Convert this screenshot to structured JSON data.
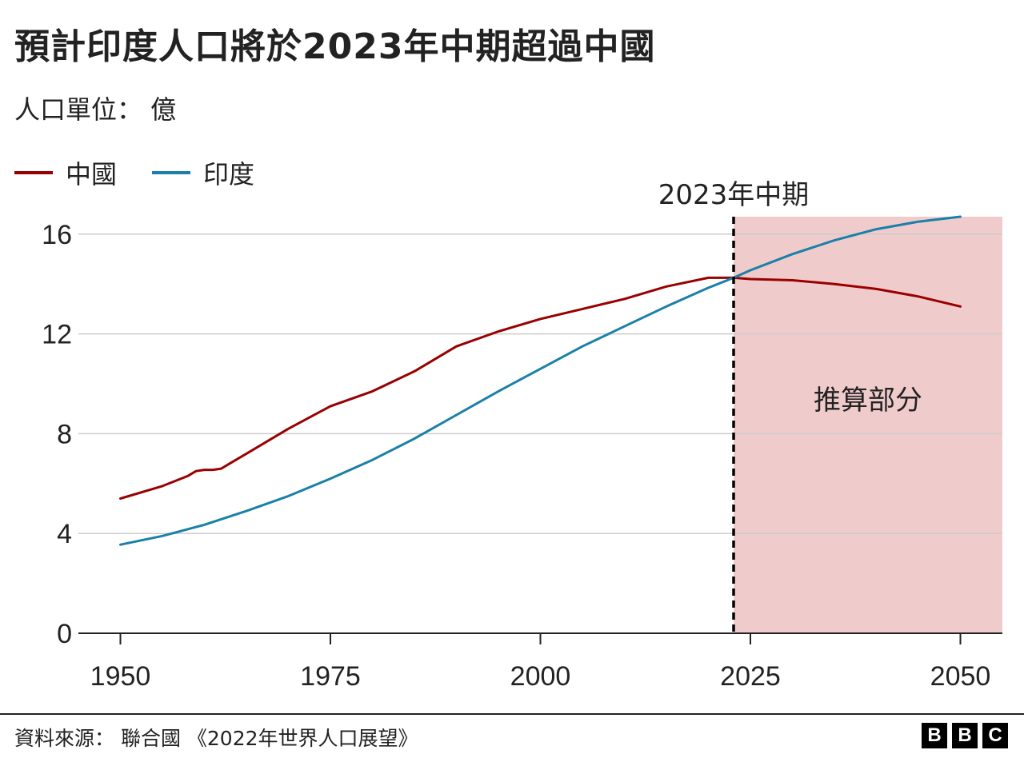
{
  "title": "預計印度人口將於2023年中期超過中國",
  "subtitle": "人口單位： 億",
  "source": "資料來源： 聯合國 《2022年世界人口展望》",
  "logo": [
    "B",
    "B",
    "C"
  ],
  "chart_data": {
    "type": "line",
    "xlim": [
      1945,
      2055
    ],
    "ylim": [
      0,
      16
    ],
    "yticks": [
      0,
      4,
      8,
      12,
      16
    ],
    "xticks": [
      1950,
      1975,
      2000,
      2025,
      2050
    ],
    "grid": "horizontal",
    "legend_position": "top-left",
    "series": [
      {
        "name": "中國",
        "color": "#990000",
        "points": [
          [
            1950,
            5.4
          ],
          [
            1955,
            5.9
          ],
          [
            1958,
            6.3
          ],
          [
            1959,
            6.5
          ],
          [
            1960,
            6.55
          ],
          [
            1961,
            6.55
          ],
          [
            1962,
            6.6
          ],
          [
            1963,
            6.8
          ],
          [
            1965,
            7.2
          ],
          [
            1970,
            8.2
          ],
          [
            1975,
            9.1
          ],
          [
            1980,
            9.7
          ],
          [
            1985,
            10.5
          ],
          [
            1990,
            11.5
          ],
          [
            1995,
            12.1
          ],
          [
            2000,
            12.6
          ],
          [
            2005,
            13.0
          ],
          [
            2010,
            13.4
          ],
          [
            2015,
            13.9
          ],
          [
            2020,
            14.25
          ],
          [
            2023,
            14.25
          ],
          [
            2025,
            14.2
          ],
          [
            2030,
            14.15
          ],
          [
            2035,
            14.0
          ],
          [
            2040,
            13.8
          ],
          [
            2045,
            13.5
          ],
          [
            2050,
            13.1
          ]
        ]
      },
      {
        "name": "印度",
        "color": "#1a80a8",
        "points": [
          [
            1950,
            3.55
          ],
          [
            1955,
            3.9
          ],
          [
            1960,
            4.35
          ],
          [
            1965,
            4.9
          ],
          [
            1970,
            5.5
          ],
          [
            1975,
            6.2
          ],
          [
            1980,
            6.95
          ],
          [
            1985,
            7.8
          ],
          [
            1990,
            8.75
          ],
          [
            1995,
            9.7
          ],
          [
            2000,
            10.6
          ],
          [
            2005,
            11.5
          ],
          [
            2010,
            12.3
          ],
          [
            2015,
            13.1
          ],
          [
            2020,
            13.85
          ],
          [
            2023,
            14.25
          ],
          [
            2025,
            14.55
          ],
          [
            2030,
            15.2
          ],
          [
            2035,
            15.75
          ],
          [
            2040,
            16.2
          ],
          [
            2045,
            16.5
          ],
          [
            2050,
            16.7
          ]
        ]
      }
    ],
    "annotation": {
      "x": 2023,
      "label": "2023年中期",
      "line_style": "dashed"
    },
    "shaded_region": {
      "x_start": 2023,
      "x_end": 2055,
      "label": "推算部分",
      "color": "#f0cbcc"
    }
  }
}
